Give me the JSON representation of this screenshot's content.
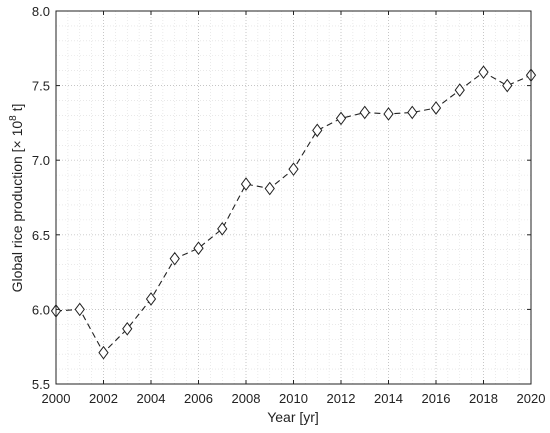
{
  "chart_data": {
    "type": "line",
    "xlabel": "Year [yr]",
    "ylabel_main": "Global rice production [× 10",
    "ylabel_sup": "8",
    "ylabel_tail": " t]",
    "xlim": [
      2000,
      2020
    ],
    "ylim": [
      5.5,
      8.0
    ],
    "grid": true,
    "x_ticks": [
      "2000",
      "2002",
      "2004",
      "2006",
      "2008",
      "2010",
      "2012",
      "2014",
      "2016",
      "2018",
      "2020"
    ],
    "y_ticks": [
      "5.5",
      "6.0",
      "6.5",
      "7.0",
      "7.5",
      "8.0"
    ],
    "series": [
      {
        "marker": "diamond",
        "line_style": "dashed",
        "color": "#222222",
        "x": [
          2000,
          2001,
          2002,
          2003,
          2004,
          2005,
          2006,
          2007,
          2008,
          2009,
          2010,
          2011,
          2012,
          2013,
          2014,
          2015,
          2016,
          2017,
          2018,
          2019,
          2020
        ],
        "y": [
          5.99,
          6.0,
          5.71,
          5.87,
          6.07,
          6.34,
          6.41,
          6.54,
          6.84,
          6.81,
          6.94,
          7.2,
          7.28,
          7.32,
          7.31,
          7.32,
          7.35,
          7.47,
          7.59,
          7.5,
          7.57
        ]
      }
    ]
  }
}
